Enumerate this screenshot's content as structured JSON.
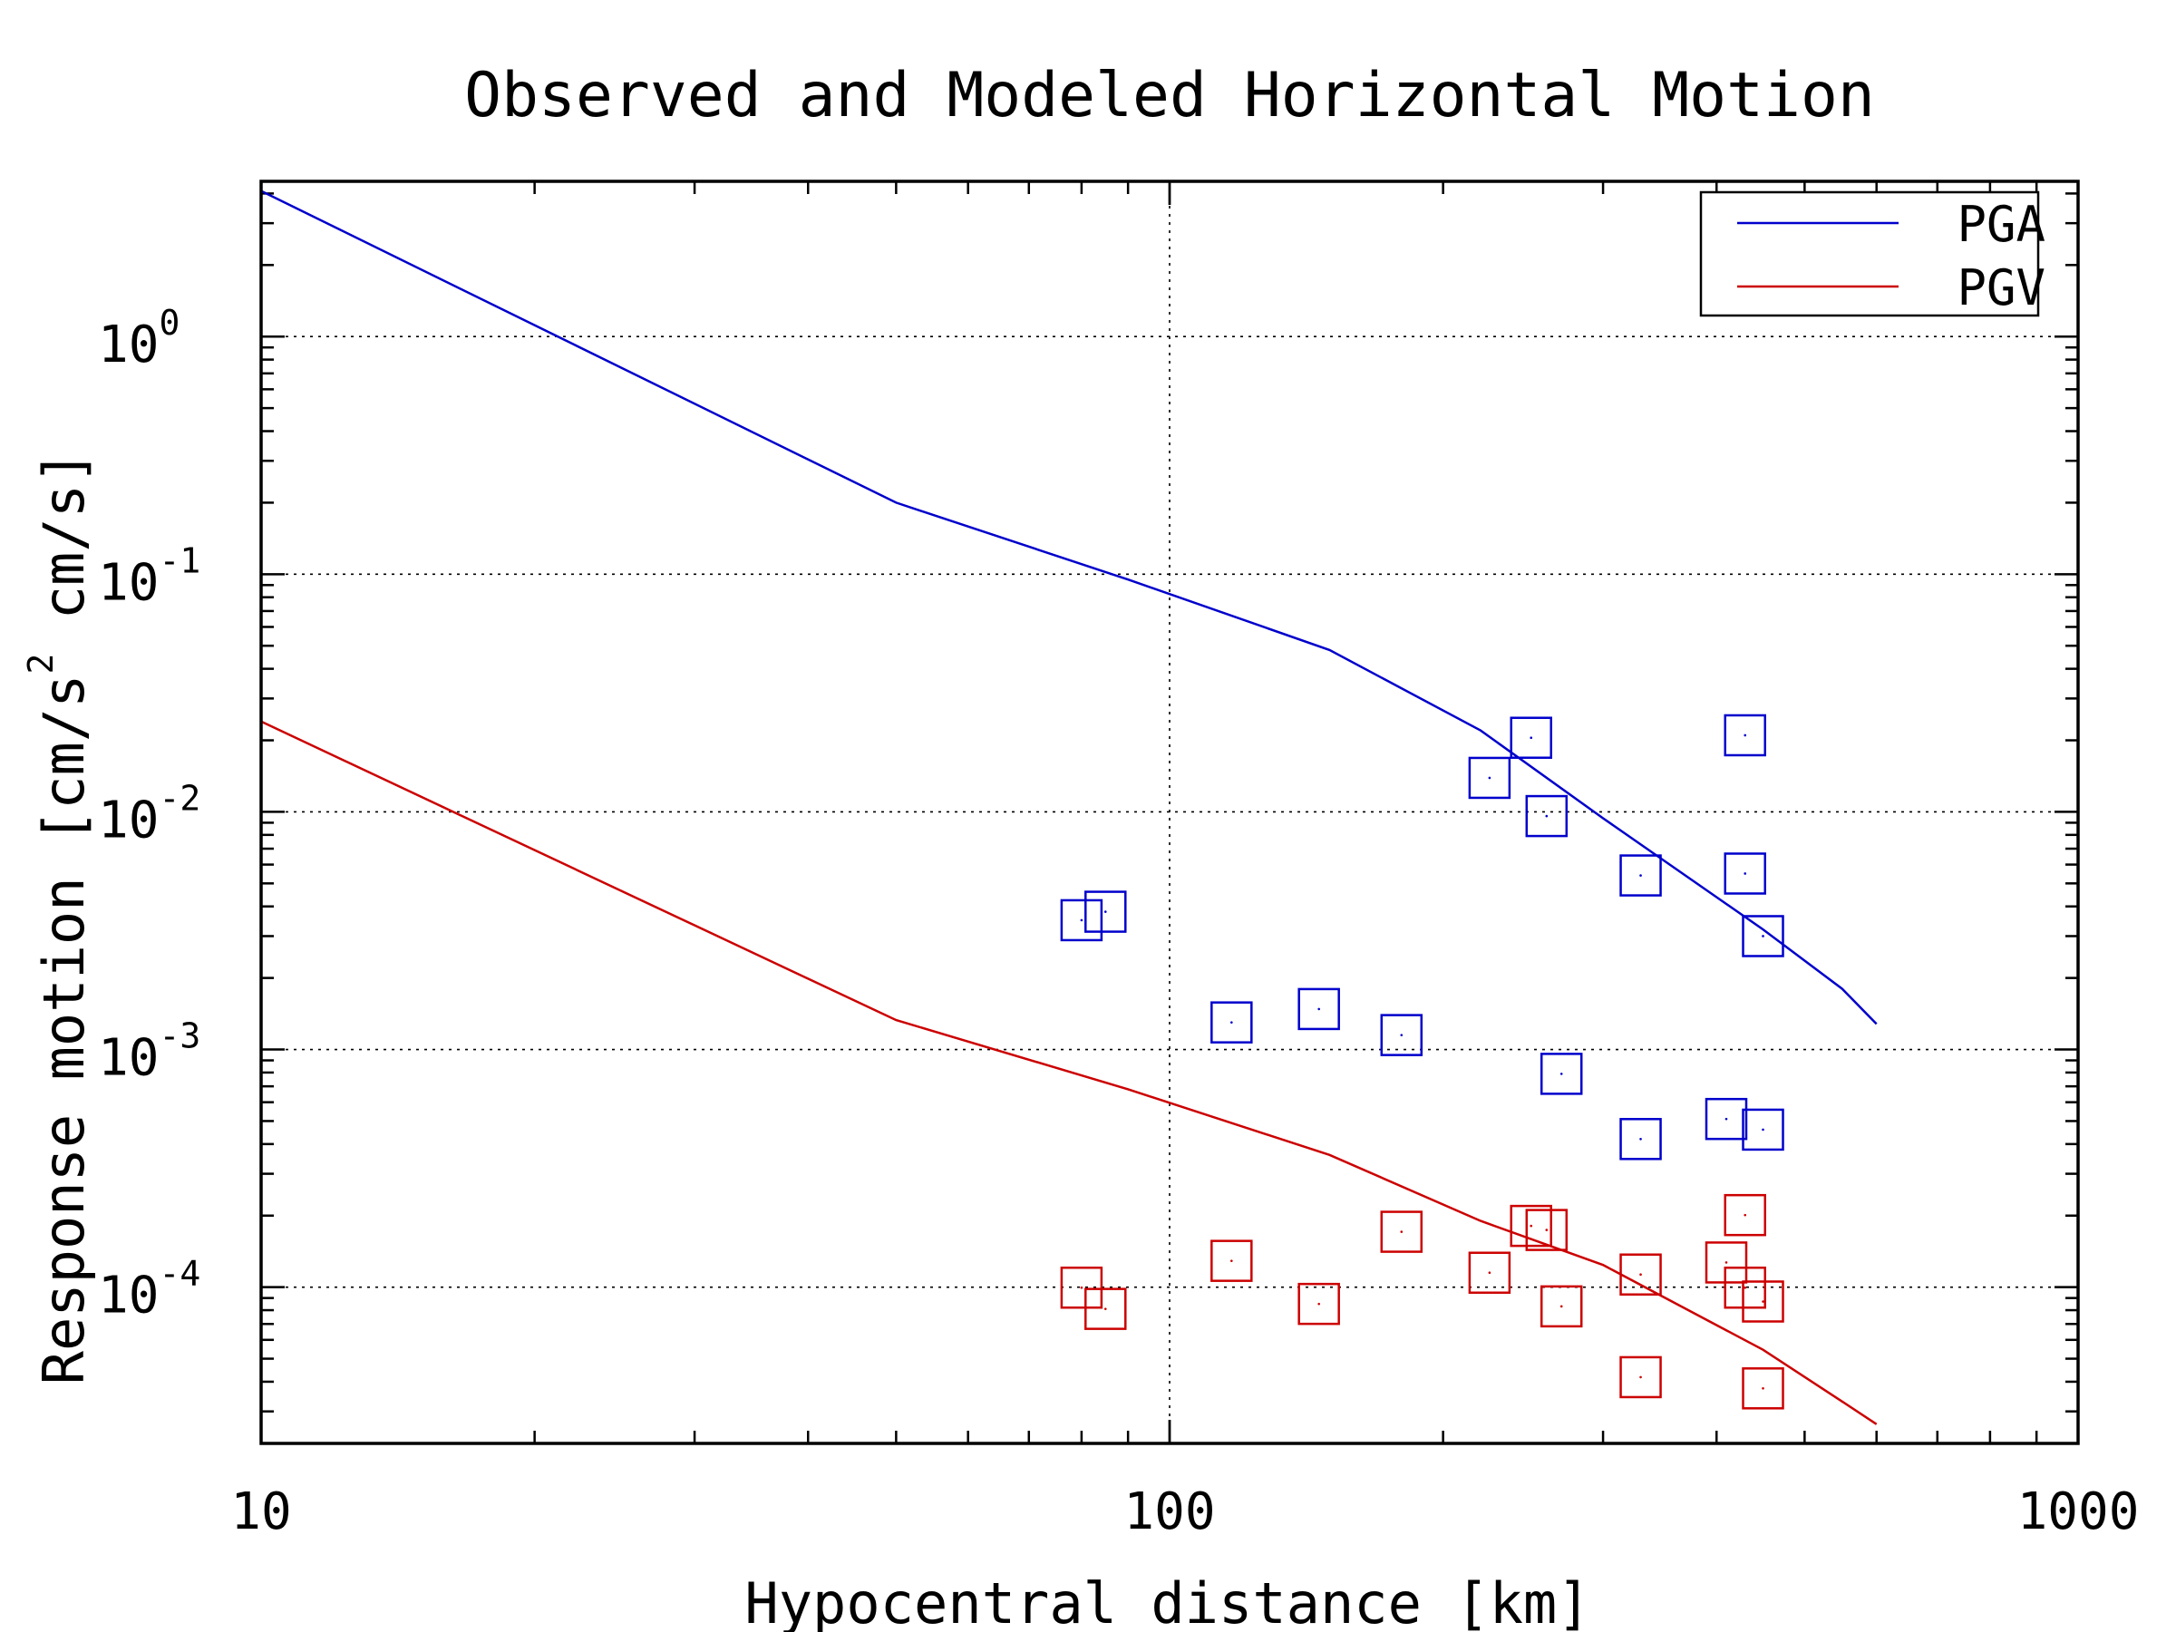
{
  "chart_data": {
    "type": "scatter",
    "title": "Observed and Modeled Horizontal Motion",
    "xlabel": "Hypocentral distance [km]",
    "ylabel_parts": [
      "Response motion  [cm/s",
      "2",
      "  cm/s]"
    ],
    "xscale": "log",
    "yscale": "log",
    "xlim": [
      10,
      1000
    ],
    "ylim": [
      2.2e-05,
      4.5
    ],
    "grid": true,
    "legend_position": "top-right",
    "x_ticks": [
      {
        "value": 10,
        "label": "10"
      },
      {
        "value": 100,
        "label": "100"
      },
      {
        "value": 1000,
        "label": "1000"
      }
    ],
    "y_ticks": [
      {
        "value": 1,
        "base": "10",
        "exp": "0"
      },
      {
        "value": 0.1,
        "base": "10",
        "exp": "-1"
      },
      {
        "value": 0.01,
        "base": "10",
        "exp": "-2"
      },
      {
        "value": 0.001,
        "base": "10",
        "exp": "-3"
      },
      {
        "value": 0.0001,
        "base": "10",
        "exp": "-4"
      }
    ],
    "series": [
      {
        "name": "PGA",
        "color": "#0000cc",
        "line": [
          [
            10,
            4.1
          ],
          [
            50,
            0.2
          ],
          [
            90,
            0.095
          ],
          [
            150,
            0.048
          ],
          [
            220,
            0.022
          ],
          [
            300,
            0.0094
          ],
          [
            450,
            0.0032
          ],
          [
            550,
            0.0018
          ],
          [
            600,
            0.00128
          ]
        ],
        "points": [
          [
            80,
            0.0035
          ],
          [
            85,
            0.0038
          ],
          [
            117,
            0.0013
          ],
          [
            146,
            0.00148
          ],
          [
            180,
            0.00115
          ],
          [
            225,
            0.0139
          ],
          [
            250,
            0.0205
          ],
          [
            260,
            0.0096
          ],
          [
            270,
            0.00079
          ],
          [
            330,
            0.0054
          ],
          [
            330,
            0.00042
          ],
          [
            410,
            0.00051
          ],
          [
            430,
            0.021
          ],
          [
            430,
            0.0055
          ],
          [
            450,
            0.003
          ],
          [
            450,
            0.00046
          ]
        ]
      },
      {
        "name": "PGV",
        "color": "#cc0000",
        "line": [
          [
            10,
            0.024
          ],
          [
            50,
            0.00133
          ],
          [
            90,
            0.00068
          ],
          [
            150,
            0.00036
          ],
          [
            220,
            0.00019
          ],
          [
            300,
            0.000124
          ],
          [
            450,
            5.45e-05
          ],
          [
            550,
            3.3e-05
          ],
          [
            600,
            2.65e-05
          ]
        ],
        "points": [
          [
            80,
            9.95e-05
          ],
          [
            85,
            8.1e-05
          ],
          [
            117,
            0.000129
          ],
          [
            146,
            8.5e-05
          ],
          [
            180,
            0.000171
          ],
          [
            225,
            0.000115
          ],
          [
            250,
            0.000181
          ],
          [
            260,
            0.000174
          ],
          [
            270,
            8.3e-05
          ],
          [
            330,
            0.000113
          ],
          [
            330,
            4.18e-05
          ],
          [
            410,
            0.000127
          ],
          [
            430,
            0.000201
          ],
          [
            430,
            9.95e-05
          ],
          [
            450,
            8.7e-05
          ],
          [
            450,
            3.75e-05
          ]
        ]
      }
    ]
  }
}
